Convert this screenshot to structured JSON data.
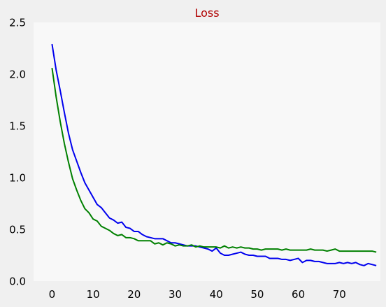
{
  "chart_data": {
    "type": "line",
    "title": "Loss",
    "xlabel": "",
    "ylabel": "",
    "xlim": [
      -4.5,
      80
    ],
    "ylim": [
      0,
      2.5
    ],
    "xticks": [
      0,
      10,
      20,
      30,
      40,
      50,
      60,
      70
    ],
    "yticks": [
      0.0,
      0.5,
      1.0,
      1.5,
      2.0,
      2.5
    ],
    "ytick_labels": [
      "0.0",
      "0.5",
      "1.0",
      "1.5",
      "2.0",
      "2.5"
    ],
    "grid": false,
    "colors": {
      "title": "#b00000",
      "plot_background": "#f8f8f8",
      "figure_background": "#f0f0f0"
    },
    "series": [
      {
        "color": "#0000ee",
        "values": [
          2.29,
          2.04,
          1.84,
          1.63,
          1.43,
          1.27,
          1.16,
          1.05,
          0.95,
          0.88,
          0.81,
          0.74,
          0.71,
          0.66,
          0.61,
          0.59,
          0.56,
          0.57,
          0.52,
          0.51,
          0.48,
          0.48,
          0.45,
          0.43,
          0.42,
          0.41,
          0.41,
          0.41,
          0.39,
          0.37,
          0.37,
          0.36,
          0.35,
          0.34,
          0.34,
          0.34,
          0.33,
          0.32,
          0.31,
          0.29,
          0.32,
          0.27,
          0.25,
          0.25,
          0.26,
          0.27,
          0.28,
          0.26,
          0.25,
          0.25,
          0.24,
          0.24,
          0.24,
          0.22,
          0.22,
          0.22,
          0.21,
          0.21,
          0.2,
          0.21,
          0.22,
          0.18,
          0.2,
          0.2,
          0.19,
          0.19,
          0.18,
          0.17,
          0.17,
          0.17,
          0.18,
          0.17,
          0.18,
          0.17,
          0.18,
          0.16,
          0.15,
          0.17,
          0.16,
          0.15
        ]
      },
      {
        "color": "#008000",
        "values": [
          2.06,
          1.78,
          1.54,
          1.33,
          1.15,
          0.99,
          0.88,
          0.78,
          0.7,
          0.66,
          0.6,
          0.58,
          0.53,
          0.51,
          0.49,
          0.46,
          0.44,
          0.45,
          0.42,
          0.42,
          0.41,
          0.39,
          0.39,
          0.39,
          0.39,
          0.36,
          0.37,
          0.35,
          0.37,
          0.36,
          0.34,
          0.35,
          0.34,
          0.34,
          0.35,
          0.33,
          0.34,
          0.33,
          0.33,
          0.33,
          0.33,
          0.32,
          0.34,
          0.32,
          0.33,
          0.32,
          0.33,
          0.32,
          0.32,
          0.31,
          0.31,
          0.3,
          0.31,
          0.31,
          0.31,
          0.31,
          0.3,
          0.31,
          0.3,
          0.3,
          0.3,
          0.3,
          0.3,
          0.31,
          0.3,
          0.3,
          0.3,
          0.29,
          0.3,
          0.31,
          0.29,
          0.29,
          0.29,
          0.29,
          0.29,
          0.29,
          0.29,
          0.29,
          0.29,
          0.28
        ]
      }
    ]
  }
}
